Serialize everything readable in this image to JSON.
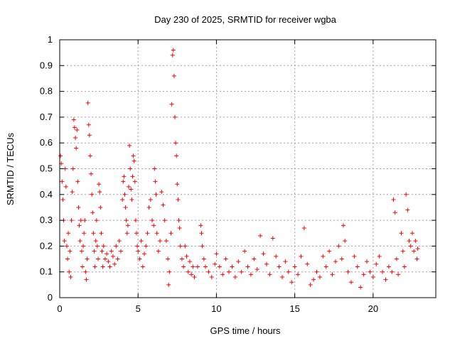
{
  "chart_data": {
    "type": "scatter",
    "title": "Day 230 of 2025, SRMTID for receiver wgba",
    "xlabel": "GPS time / hours",
    "ylabel": "SRMTID / TECUs",
    "xlim": [
      0,
      24
    ],
    "ylim": [
      0,
      1
    ],
    "xticks": [
      0,
      5,
      10,
      15,
      20
    ],
    "xtick_labels": [
      "0",
      "5",
      "10",
      "15",
      "20"
    ],
    "yticks": [
      0,
      0.1,
      0.2,
      0.3,
      0.4,
      0.5,
      0.6,
      0.7,
      0.8,
      0.9,
      1
    ],
    "ytick_labels": [
      "0",
      "0.1",
      "0.2",
      "0.3",
      "0.4",
      "0.5",
      "0.6",
      "0.7",
      "0.8",
      "0.9",
      "1"
    ],
    "grid": true,
    "marker": "+",
    "color": "#ff0000",
    "series": [
      {
        "name": "SRMTID",
        "points": [
          [
            0.05,
            0.55
          ],
          [
            0.1,
            0.52
          ],
          [
            0.15,
            0.45
          ],
          [
            0.2,
            0.38
          ],
          [
            0.25,
            0.3
          ],
          [
            0.3,
            0.22
          ],
          [
            0.35,
            0.5
          ],
          [
            0.4,
            0.43
          ],
          [
            0.45,
            0.2
          ],
          [
            0.5,
            0.15
          ],
          [
            0.55,
            0.25
          ],
          [
            0.6,
            0.1
          ],
          [
            0.65,
            0.18
          ],
          [
            0.7,
            0.08
          ],
          [
            0.75,
            0.3
          ],
          [
            0.8,
            0.41
          ],
          [
            0.85,
            0.5
          ],
          [
            0.9,
            0.69
          ],
          [
            0.95,
            0.66
          ],
          [
            1.0,
            0.62
          ],
          [
            1.05,
            0.58
          ],
          [
            1.1,
            0.65
          ],
          [
            1.15,
            0.45
          ],
          [
            1.2,
            0.35
          ],
          [
            1.25,
            0.28
          ],
          [
            1.3,
            0.22
          ],
          [
            1.35,
            0.3
          ],
          [
            1.4,
            0.18
          ],
          [
            1.45,
            0.12
          ],
          [
            1.5,
            0.2
          ],
          [
            1.55,
            0.25
          ],
          [
            1.6,
            0.3
          ],
          [
            1.65,
            0.1
          ],
          [
            1.7,
            0.07
          ],
          [
            1.75,
            0.15
          ],
          [
            1.8,
            0.755
          ],
          [
            1.85,
            0.67
          ],
          [
            1.9,
            0.63
          ],
          [
            1.95,
            0.55
          ],
          [
            2.0,
            0.48
          ],
          [
            2.05,
            0.4
          ],
          [
            2.1,
            0.33
          ],
          [
            2.15,
            0.25
          ],
          [
            2.2,
            0.18
          ],
          [
            2.25,
            0.12
          ],
          [
            2.3,
            0.22
          ],
          [
            2.35,
            0.3
          ],
          [
            2.4,
            0.2
          ],
          [
            2.45,
            0.15
          ],
          [
            2.5,
            0.44
          ],
          [
            2.55,
            0.41
          ],
          [
            2.6,
            0.35
          ],
          [
            2.65,
            0.25
          ],
          [
            2.7,
            0.18
          ],
          [
            2.75,
            0.12
          ],
          [
            2.8,
            0.2
          ],
          [
            2.9,
            0.15
          ],
          [
            3.0,
            0.17
          ],
          [
            3.1,
            0.14
          ],
          [
            3.2,
            0.12
          ],
          [
            3.3,
            0.18
          ],
          [
            3.4,
            0.16
          ],
          [
            3.5,
            0.13
          ],
          [
            3.6,
            0.2
          ],
          [
            3.7,
            0.15
          ],
          [
            3.8,
            0.22
          ],
          [
            3.9,
            0.18
          ],
          [
            4.0,
            0.38
          ],
          [
            4.05,
            0.45
          ],
          [
            4.1,
            0.47
          ],
          [
            4.15,
            0.4
          ],
          [
            4.2,
            0.35
          ],
          [
            4.25,
            0.3
          ],
          [
            4.3,
            0.25
          ],
          [
            4.35,
            0.28
          ],
          [
            4.4,
            0.43
          ],
          [
            4.45,
            0.59
          ],
          [
            4.5,
            0.5
          ],
          [
            4.55,
            0.42
          ],
          [
            4.6,
            0.38
          ],
          [
            4.65,
            0.47
          ],
          [
            4.7,
            0.55
          ],
          [
            4.75,
            0.53
          ],
          [
            4.8,
            0.45
          ],
          [
            4.85,
            0.3
          ],
          [
            4.9,
            0.25
          ],
          [
            4.95,
            0.2
          ],
          [
            5.0,
            0.18
          ],
          [
            5.1,
            0.15
          ],
          [
            5.2,
            0.22
          ],
          [
            5.3,
            0.12
          ],
          [
            5.4,
            0.17
          ],
          [
            5.5,
            0.2
          ],
          [
            5.6,
            0.25
          ],
          [
            5.7,
            0.35
          ],
          [
            5.8,
            0.38
          ],
          [
            5.9,
            0.3
          ],
          [
            6.0,
            0.28
          ],
          [
            6.05,
            0.5
          ],
          [
            6.1,
            0.45
          ],
          [
            6.15,
            0.4
          ],
          [
            6.2,
            0.25
          ],
          [
            6.3,
            0.18
          ],
          [
            6.4,
            0.22
          ],
          [
            6.5,
            0.41
          ],
          [
            6.6,
            0.36
          ],
          [
            6.7,
            0.3
          ],
          [
            6.8,
            0.22
          ],
          [
            6.9,
            0.15
          ],
          [
            6.95,
            0.05
          ],
          [
            7.0,
            0.1
          ],
          [
            7.1,
            0.25
          ],
          [
            7.15,
            0.75
          ],
          [
            7.2,
            0.94
          ],
          [
            7.25,
            0.96
          ],
          [
            7.3,
            0.86
          ],
          [
            7.35,
            0.7
          ],
          [
            7.4,
            0.6
          ],
          [
            7.45,
            0.55
          ],
          [
            7.5,
            0.44
          ],
          [
            7.55,
            0.38
          ],
          [
            7.6,
            0.3
          ],
          [
            7.65,
            0.27
          ],
          [
            7.7,
            0.2
          ],
          [
            7.8,
            0.15
          ],
          [
            7.9,
            0.12
          ],
          [
            8.0,
            0.2
          ],
          [
            8.1,
            0.16
          ],
          [
            8.2,
            0.1
          ],
          [
            8.3,
            0.14
          ],
          [
            8.4,
            0.09
          ],
          [
            8.5,
            0.12
          ],
          [
            8.6,
            0.08
          ],
          [
            8.8,
            0.12
          ],
          [
            9.0,
            0.28
          ],
          [
            9.05,
            0.25
          ],
          [
            9.1,
            0.2
          ],
          [
            9.2,
            0.15
          ],
          [
            9.3,
            0.12
          ],
          [
            9.5,
            0.1
          ],
          [
            9.7,
            0.08
          ],
          [
            9.9,
            0.13
          ],
          [
            10.0,
            0.17
          ],
          [
            10.2,
            0.12
          ],
          [
            10.4,
            0.09
          ],
          [
            10.6,
            0.15
          ],
          [
            10.8,
            0.1
          ],
          [
            11.0,
            0.12
          ],
          [
            11.2,
            0.08
          ],
          [
            11.4,
            0.14
          ],
          [
            11.6,
            0.1
          ],
          [
            11.8,
            0.18
          ],
          [
            12.0,
            0.12
          ],
          [
            12.2,
            0.09
          ],
          [
            12.4,
            0.15
          ],
          [
            12.6,
            0.11
          ],
          [
            12.8,
            0.24
          ],
          [
            13.0,
            0.17
          ],
          [
            13.2,
            0.13
          ],
          [
            13.4,
            0.09
          ],
          [
            13.6,
            0.23
          ],
          [
            13.8,
            0.16
          ],
          [
            14.0,
            0.12
          ],
          [
            14.2,
            0.08
          ],
          [
            14.4,
            0.14
          ],
          [
            14.6,
            0.1
          ],
          [
            14.8,
            0.06
          ],
          [
            15.0,
            0.12
          ],
          [
            15.2,
            0.09
          ],
          [
            15.4,
            0.16
          ],
          [
            15.6,
            0.27
          ],
          [
            15.8,
            0.13
          ],
          [
            16.0,
            0.05
          ],
          [
            16.2,
            0.07
          ],
          [
            16.4,
            0.1
          ],
          [
            16.6,
            0.08
          ],
          [
            16.8,
            0.16
          ],
          [
            17.0,
            0.12
          ],
          [
            17.2,
            0.18
          ],
          [
            17.4,
            0.09
          ],
          [
            17.6,
            0.14
          ],
          [
            17.8,
            0.2
          ],
          [
            18.0,
            0.15
          ],
          [
            18.1,
            0.28
          ],
          [
            18.2,
            0.22
          ],
          [
            18.4,
            0.1
          ],
          [
            18.6,
            0.06
          ],
          [
            18.8,
            0.16
          ],
          [
            19.0,
            0.12
          ],
          [
            19.2,
            0.04
          ],
          [
            19.4,
            0.09
          ],
          [
            19.6,
            0.14
          ],
          [
            19.8,
            0.1
          ],
          [
            20.0,
            0.08
          ],
          [
            20.2,
            0.13
          ],
          [
            20.4,
            0.16
          ],
          [
            20.6,
            0.1
          ],
          [
            20.8,
            0.07
          ],
          [
            21.0,
            0.12
          ],
          [
            21.2,
            0.1
          ],
          [
            21.3,
            0.38
          ],
          [
            21.4,
            0.33
          ],
          [
            21.5,
            0.15
          ],
          [
            21.6,
            0.09
          ],
          [
            21.8,
            0.25
          ],
          [
            21.9,
            0.18
          ],
          [
            22.0,
            0.12
          ],
          [
            22.1,
            0.4
          ],
          [
            22.2,
            0.34
          ],
          [
            22.3,
            0.22
          ],
          [
            22.4,
            0.2
          ],
          [
            22.5,
            0.25
          ],
          [
            22.6,
            0.18
          ],
          [
            22.7,
            0.22
          ],
          [
            22.8,
            0.15
          ],
          [
            22.85,
            0.19
          ]
        ]
      }
    ]
  }
}
